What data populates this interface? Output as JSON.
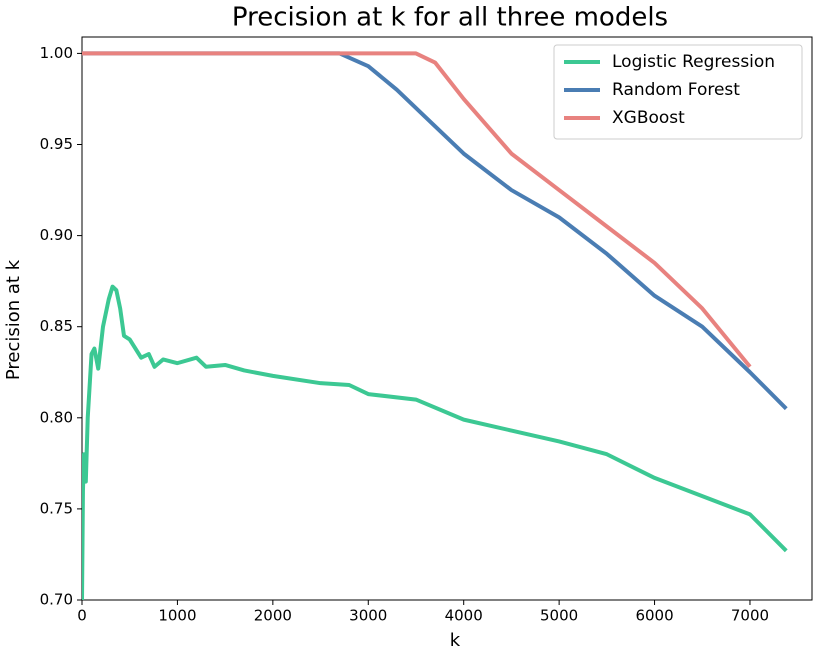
{
  "chart_data": {
    "type": "line",
    "title": "Precision at k for all three models",
    "x_label": "k",
    "y_label": "Precision at k",
    "xlim": [
      0,
      7650
    ],
    "xticks": [
      0,
      1000,
      2000,
      3000,
      4000,
      5000,
      6000,
      7000
    ],
    "ylim": [
      0.7,
      1.009
    ],
    "yticks": [
      {
        "value": 0.7,
        "label": "0.70"
      },
      {
        "value": 0.75,
        "label": "0.75"
      },
      {
        "value": 0.8,
        "label": "0.80"
      },
      {
        "value": 0.85,
        "label": "0.85"
      },
      {
        "value": 0.9,
        "label": "0.90"
      },
      {
        "value": 0.95,
        "label": "0.95"
      },
      {
        "value": 1.0,
        "label": "1.00"
      }
    ],
    "legend": "upper right",
    "series": [
      {
        "name": "Logistic Regression",
        "color": "#3cc893",
        "x": [
          0,
          10,
          20,
          40,
          60,
          100,
          130,
          170,
          220,
          280,
          320,
          360,
          400,
          440,
          500,
          560,
          620,
          700,
          760,
          850,
          1000,
          1200,
          1300,
          1500,
          1700,
          2000,
          2500,
          2800,
          3000,
          3500,
          4000,
          4500,
          5000,
          5500,
          6000,
          6500,
          7000,
          7380
        ],
        "values": [
          0.7,
          0.76,
          0.78,
          0.765,
          0.8,
          0.835,
          0.838,
          0.827,
          0.85,
          0.865,
          0.872,
          0.87,
          0.86,
          0.845,
          0.843,
          0.838,
          0.833,
          0.835,
          0.828,
          0.832,
          0.83,
          0.833,
          0.828,
          0.829,
          0.826,
          0.823,
          0.819,
          0.818,
          0.813,
          0.81,
          0.799,
          0.793,
          0.787,
          0.78,
          0.767,
          0.757,
          0.747,
          0.727
        ]
      },
      {
        "name": "Random Forest",
        "color": "#4a7db3",
        "x": [
          0,
          2700,
          3000,
          3300,
          3600,
          4000,
          4500,
          5000,
          5500,
          6000,
          6500,
          7000,
          7380
        ],
        "values": [
          1.0,
          1.0,
          0.993,
          0.98,
          0.965,
          0.945,
          0.925,
          0.91,
          0.89,
          0.867,
          0.85,
          0.825,
          0.805
        ]
      },
      {
        "name": "XGBoost",
        "color": "#e8827f",
        "x": [
          0,
          3500,
          3700,
          4000,
          4500,
          5000,
          5500,
          6000,
          6500,
          7000
        ],
        "values": [
          1.0,
          1.0,
          0.995,
          0.975,
          0.945,
          0.925,
          0.905,
          0.885,
          0.86,
          0.828
        ]
      }
    ]
  }
}
